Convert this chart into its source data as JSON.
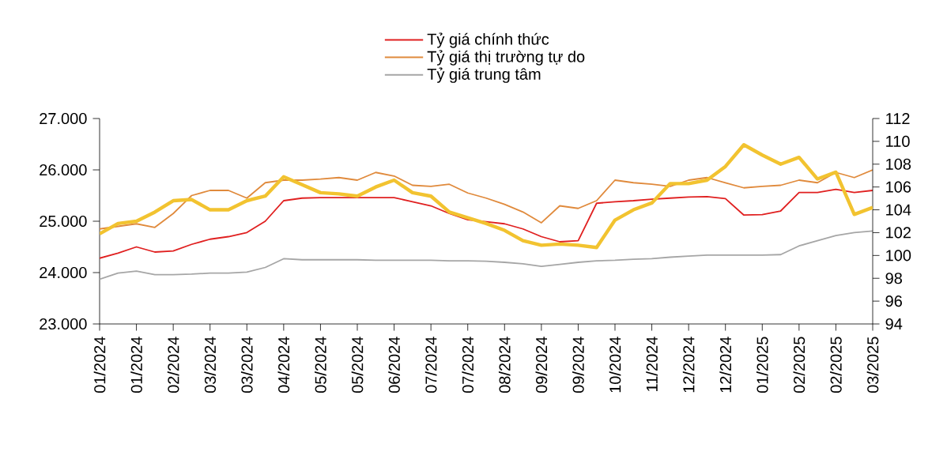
{
  "chart_data": {
    "type": "line",
    "categories": [
      "01/2024",
      null,
      "01/2024",
      null,
      "02/2024",
      null,
      "03/2024",
      null,
      "03/2024",
      null,
      "04/2024",
      null,
      "05/2024",
      null,
      "05/2024",
      null,
      "06/2024",
      null,
      "07/2024",
      null,
      "07/2024",
      null,
      "08/2024",
      null,
      "09/2024",
      null,
      "09/2024",
      null,
      "10/2024",
      null,
      "11/2024",
      null,
      "12/2024",
      null,
      "12/2024",
      null,
      "01/2025",
      null,
      "02/2025",
      null,
      "02/2025",
      null,
      "03/2025"
    ],
    "series": [
      {
        "name": "Tỷ giá chính thức",
        "color": "#e02020",
        "values": [
          24280,
          24380,
          24500,
          24400,
          24420,
          24550,
          24650,
          24700,
          24780,
          25000,
          25400,
          25450,
          25460,
          25460,
          25460,
          25460,
          25460,
          25380,
          25300,
          25150,
          25030,
          24990,
          24950,
          24850,
          24700,
          24600,
          24620,
          25350,
          25380,
          25400,
          25430,
          25450,
          25470,
          25480,
          25440,
          25120,
          25130,
          25200,
          25560,
          25560,
          25620,
          25560,
          25600
        ]
      },
      {
        "name": "Tỷ giá thị trường tự do",
        "color": "#e08a3c",
        "values": [
          24850,
          24900,
          24950,
          24880,
          25150,
          25500,
          25600,
          25600,
          25450,
          25750,
          25800,
          25800,
          25820,
          25850,
          25800,
          25950,
          25880,
          25700,
          25680,
          25720,
          25550,
          25450,
          25330,
          25180,
          24970,
          25300,
          25250,
          25400,
          25800,
          25750,
          25720,
          25680,
          25800,
          25850,
          25750,
          25650,
          25680,
          25700,
          25800,
          25750,
          25950,
          25850,
          26000
        ]
      },
      {
        "name": "Tỷ giá trung tâm",
        "color": "#a6a6a6",
        "values": [
          23870,
          23990,
          24030,
          23960,
          23960,
          23970,
          23990,
          23990,
          24010,
          24100,
          24270,
          24250,
          24250,
          24250,
          24250,
          24240,
          24240,
          24240,
          24240,
          24230,
          24230,
          24220,
          24200,
          24170,
          24120,
          24160,
          24200,
          24230,
          24240,
          24260,
          24270,
          24300,
          24320,
          24340,
          24340,
          24340,
          24340,
          24350,
          24520,
          24620,
          24720,
          24780,
          24810
        ]
      },
      {
        "color": "#f2c330",
        "axis": "y2",
        "values": [
          101.9,
          102.8,
          103.0,
          103.8,
          104.8,
          104.9,
          104.0,
          104.0,
          104.8,
          105.2,
          106.9,
          106.2,
          105.5,
          105.4,
          105.2,
          106.0,
          106.6,
          105.5,
          105.2,
          103.8,
          103.3,
          102.8,
          102.2,
          101.3,
          100.9,
          101.0,
          100.9,
          100.7,
          103.1,
          104.0,
          104.6,
          106.3,
          106.3,
          106.6,
          107.8,
          109.7,
          108.8,
          108.0,
          108.6,
          106.7,
          107.3,
          103.6,
          104.2
        ]
      }
    ],
    "ylim": [
      23000,
      27000
    ],
    "yticks": [
      {
        "value": 23000,
        "label": "23.000"
      },
      {
        "value": 24000,
        "label": "24.000"
      },
      {
        "value": 25000,
        "label": "25.000"
      },
      {
        "value": 26000,
        "label": "26.000"
      },
      {
        "value": 27000,
        "label": "27.000"
      }
    ],
    "y2lim": [
      94,
      112
    ],
    "y2ticks": [
      94,
      96,
      98,
      100,
      102,
      104,
      106,
      108,
      110,
      112
    ],
    "legend": "top",
    "grid": false,
    "marker": "none",
    "line_style": "solid"
  }
}
